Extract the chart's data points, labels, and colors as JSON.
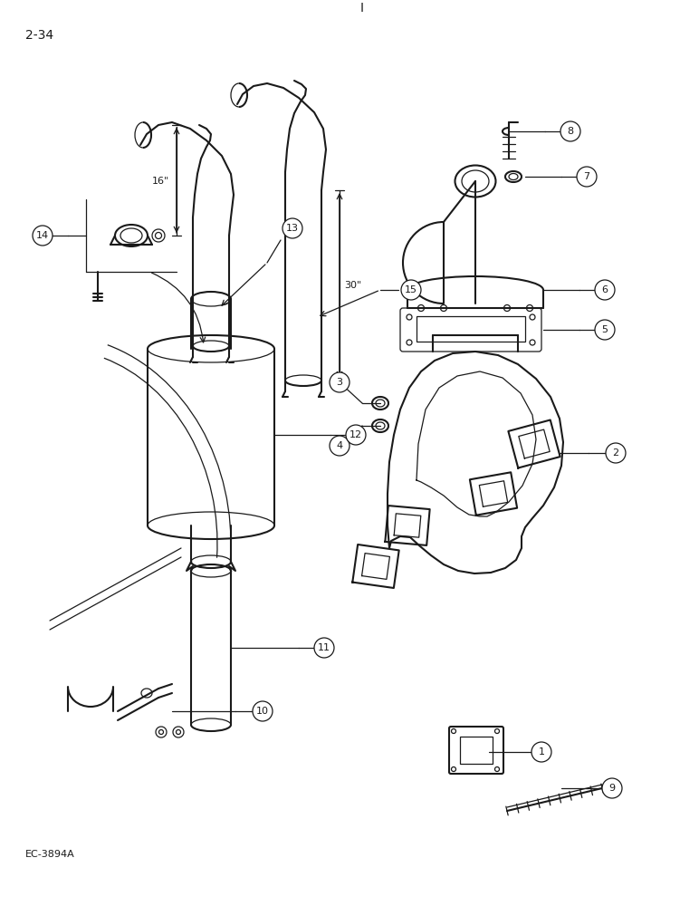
{
  "page_label": "2-34",
  "bottom_label": "EC-3894A",
  "bg": "#ffffff",
  "lc": "#1a1a1a",
  "dim_16": "16\"",
  "dim_30": "30\""
}
